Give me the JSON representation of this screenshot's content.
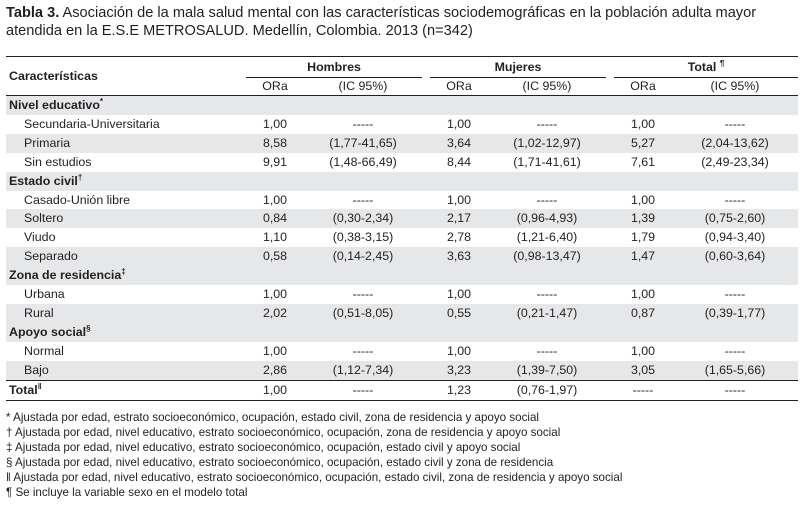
{
  "caption": {
    "label": "Tabla 3.",
    "text": " Asociación de la mala salud mental con las características sociodemográficas en la población adulta mayor atendida en la E.S.E METROSALUD. Medellín, Colombia. 2013 (n=342)"
  },
  "header": {
    "row_label": "Características",
    "groups": [
      "Hombres",
      "Mujeres",
      "Total"
    ],
    "total_mark": "¶",
    "sub": [
      "ORa",
      "(IC 95%)"
    ]
  },
  "sections": [
    {
      "title": "Nivel educativo",
      "mark": "*",
      "rows": [
        {
          "label": "Secundaria-Universitaria",
          "h_or": "1,00",
          "h_ic": "-----",
          "m_or": "1,00",
          "m_ic": "-----",
          "t_or": "1,00",
          "t_ic": "-----"
        },
        {
          "label": "Primaria",
          "h_or": "8,58",
          "h_ic": "(1,77-41,65)",
          "m_or": "3,64",
          "m_ic": "(1,02-12,97)",
          "t_or": "5,27",
          "t_ic": "(2,04-13,62)"
        },
        {
          "label": "Sin estudios",
          "h_or": "9,91",
          "h_ic": "(1,48-66,49)",
          "m_or": "8,44",
          "m_ic": "(1,71-41,61)",
          "t_or": "7,61",
          "t_ic": "(2,49-23,34)"
        }
      ]
    },
    {
      "title": "Estado civil",
      "mark": "†",
      "rows": [
        {
          "label": "Casado-Unión libre",
          "h_or": "1,00",
          "h_ic": "-----",
          "m_or": "1,00",
          "m_ic": "-----",
          "t_or": "1,00",
          "t_ic": "-----"
        },
        {
          "label": "Soltero",
          "h_or": "0,84",
          "h_ic": "(0,30-2,34)",
          "m_or": "2,17",
          "m_ic": "(0,96-4,93)",
          "t_or": "1,39",
          "t_ic": "(0,75-2,60)"
        },
        {
          "label": "Viudo",
          "h_or": "1,10",
          "h_ic": "(0,38-3,15)",
          "m_or": "2,78",
          "m_ic": "(1,21-6,40)",
          "t_or": "1,79",
          "t_ic": "(0,94-3,40)"
        },
        {
          "label": "Separado",
          "h_or": "0,58",
          "h_ic": "(0,14-2,45)",
          "m_or": "3,63",
          "m_ic": "(0,98-13,47)",
          "t_or": "1,47",
          "t_ic": "(0,60-3,64)"
        }
      ]
    },
    {
      "title": "Zona de residencia",
      "mark": "‡",
      "rows": [
        {
          "label": "Urbana",
          "h_or": "1,00",
          "h_ic": "-----",
          "m_or": "1,00",
          "m_ic": "-----",
          "t_or": "1,00",
          "t_ic": "-----"
        },
        {
          "label": "Rural",
          "h_or": "2,02",
          "h_ic": "(0,51-8,05)",
          "m_or": "0,55",
          "m_ic": "(0,21-1,47)",
          "t_or": "0,87",
          "t_ic": "(0,39-1,77)"
        }
      ]
    },
    {
      "title": "Apoyo social",
      "mark": "§",
      "rows": [
        {
          "label": "Normal",
          "h_or": "1,00",
          "h_ic": "-----",
          "m_or": "1,00",
          "m_ic": "-----",
          "t_or": "1,00",
          "t_ic": "-----"
        },
        {
          "label": "Bajo",
          "h_or": "2,86",
          "h_ic": "(1,12-7,34)",
          "m_or": "3,23",
          "m_ic": "(1,39-7,50)",
          "t_or": "3,05",
          "t_ic": "(1,65-5,66)"
        }
      ]
    }
  ],
  "total_row": {
    "label": "Total",
    "mark": "ǁ",
    "h_or": "1,00",
    "h_ic": "-----",
    "m_or": "1,23",
    "m_ic": "(0,76-1,97)",
    "t_or": "-----",
    "t_ic": "-----"
  },
  "notes": [
    "* Ajustada por edad, estrato socioeconómico, ocupación, estado civil, zona de residencia y apoyo social",
    "† Ajustada por edad, nivel educativo, estrato socioeconómico, ocupación, zona de residencia y apoyo social",
    "‡ Ajustada por edad, nivel educativo, estrato socioeconómico, ocupación, estado civil y apoyo social",
    "§ Ajustada por edad, nivel educativo, estrato socioeconómico, ocupación, estado civil y zona de residencia",
    "ǁ Ajustada por edad, nivel educativo, estrato socioeconómico, ocupación, estado civil, zona de residencia y apoyo social",
    "¶ Se incluye la variable sexo en el modelo total"
  ]
}
